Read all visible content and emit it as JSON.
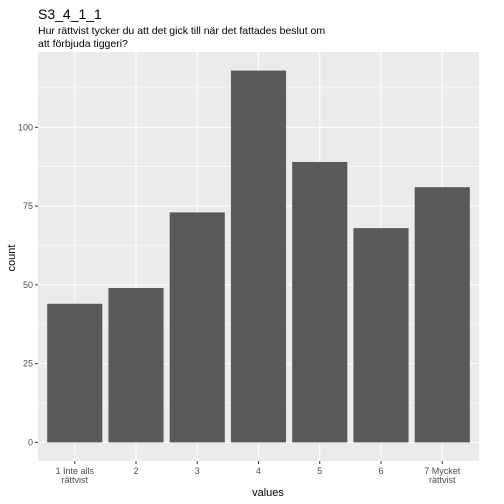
{
  "chart_data": {
    "type": "bar",
    "title": "S3_4_1_1",
    "subtitle_lines": [
      "Hur rättvist tycker du att det gick till när det fattades beslut om",
      "att förbjuda tiggeri?"
    ],
    "xlabel": "values",
    "ylabel": "count",
    "categories": [
      [
        "1 Inte alls",
        "rättvist"
      ],
      [
        "2"
      ],
      [
        "3"
      ],
      [
        "4"
      ],
      [
        "5"
      ],
      [
        "6"
      ],
      [
        "7 Mycket",
        "rättvist"
      ]
    ],
    "values": [
      44,
      49,
      73,
      118,
      89,
      68,
      81
    ],
    "yticks": [
      0,
      25,
      50,
      75,
      100
    ],
    "ylim": [
      -5.9,
      123.9
    ],
    "grid": true,
    "bar_color": "#595959",
    "panel_color": "#ebebeb",
    "grid_color": "#ffffff"
  }
}
